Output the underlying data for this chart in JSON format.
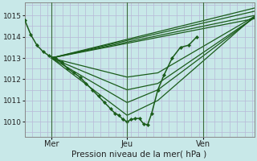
{
  "bg_color": "#c8e8e8",
  "grid_color": "#b8b8d8",
  "line_color": "#1a5c1a",
  "xlabel": "Pression niveau de la mer( hPa )",
  "ylim": [
    1009.3,
    1015.6
  ],
  "yticks": [
    1010,
    1011,
    1012,
    1013,
    1014,
    1015
  ],
  "xlim": [
    0.0,
    1.12
  ],
  "xtick_positions": [
    0.13,
    0.5,
    0.87
  ],
  "xtick_labels": [
    "Mer",
    "Jeu",
    "Ven"
  ],
  "vline_positions": [
    0.13,
    0.5,
    0.87
  ],
  "marker_line": {
    "x": [
      0.0,
      0.03,
      0.06,
      0.09,
      0.12,
      0.15,
      0.18,
      0.21,
      0.24,
      0.27,
      0.3,
      0.33,
      0.36,
      0.39,
      0.42,
      0.44,
      0.46,
      0.48,
      0.5,
      0.52,
      0.54,
      0.56,
      0.58,
      0.6,
      0.62,
      0.65,
      0.68,
      0.72,
      0.76,
      0.8,
      0.84
    ],
    "y": [
      1014.8,
      1014.1,
      1013.6,
      1013.3,
      1013.1,
      1013.0,
      1012.8,
      1012.5,
      1012.3,
      1012.1,
      1011.8,
      1011.5,
      1011.2,
      1010.9,
      1010.6,
      1010.4,
      1010.3,
      1010.1,
      1010.0,
      1010.1,
      1010.15,
      1010.15,
      1009.9,
      1009.85,
      1010.4,
      1011.5,
      1012.2,
      1013.0,
      1013.5,
      1013.6,
      1014.0
    ]
  },
  "fan_lines": [
    {
      "x": [
        0.13,
        1.12
      ],
      "y": [
        1013.0,
        1015.35
      ]
    },
    {
      "x": [
        0.13,
        1.12
      ],
      "y": [
        1013.0,
        1015.2
      ]
    },
    {
      "x": [
        0.13,
        1.12
      ],
      "y": [
        1013.0,
        1015.0
      ]
    },
    {
      "x": [
        0.13,
        1.12
      ],
      "y": [
        1013.0,
        1014.85
      ]
    },
    {
      "x": [
        0.13,
        0.5,
        0.65,
        1.12
      ],
      "y": [
        1013.0,
        1012.1,
        1012.3,
        1014.95
      ]
    },
    {
      "x": [
        0.13,
        0.5,
        0.65,
        1.12
      ],
      "y": [
        1013.0,
        1011.5,
        1011.8,
        1014.9
      ]
    },
    {
      "x": [
        0.13,
        0.5,
        0.65,
        1.12
      ],
      "y": [
        1013.0,
        1010.9,
        1011.5,
        1014.9
      ]
    },
    {
      "x": [
        0.13,
        0.5,
        0.65,
        1.12
      ],
      "y": [
        1013.0,
        1010.3,
        1011.0,
        1014.95
      ]
    }
  ]
}
